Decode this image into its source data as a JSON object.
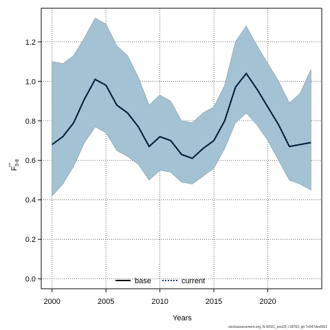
{
  "chart_data": {
    "type": "line",
    "xlabel": "Years",
    "ylabel_main": "F",
    "ylabel_sub": "5-8",
    "xlim": [
      1999,
      2025
    ],
    "ylim": [
      -0.05,
      1.37
    ],
    "x_ticks": [
      2000,
      2005,
      2010,
      2015,
      2020
    ],
    "y_ticks": [
      0.0,
      0.2,
      0.4,
      0.6,
      0.8,
      1.0,
      1.2
    ],
    "y_tick_labels": [
      "0.0",
      "0.2",
      "0.4",
      "0.6",
      "0.8",
      "1.0",
      "1.2"
    ],
    "grid": true,
    "x": [
      2000,
      2001,
      2002,
      2003,
      2004,
      2005,
      2006,
      2007,
      2008,
      2009,
      2010,
      2011,
      2012,
      2013,
      2014,
      2015,
      2016,
      2017,
      2018,
      2019,
      2020,
      2021,
      2022,
      2023,
      2024
    ],
    "band": {
      "upper": [
        1.1,
        1.09,
        1.13,
        1.22,
        1.32,
        1.29,
        1.18,
        1.13,
        1.02,
        0.88,
        0.93,
        0.9,
        0.8,
        0.79,
        0.84,
        0.87,
        0.98,
        1.2,
        1.28,
        1.18,
        1.09,
        1.0,
        0.89,
        0.94,
        1.06
      ],
      "lower": [
        0.42,
        0.48,
        0.57,
        0.69,
        0.77,
        0.74,
        0.65,
        0.62,
        0.58,
        0.5,
        0.55,
        0.54,
        0.49,
        0.48,
        0.52,
        0.56,
        0.66,
        0.79,
        0.84,
        0.78,
        0.7,
        0.6,
        0.5,
        0.48,
        0.45
      ],
      "color": "#a3c3d5"
    },
    "series": [
      {
        "name": "base",
        "style": "solid",
        "color": "#000000",
        "values": [
          0.68,
          0.72,
          0.79,
          0.91,
          1.01,
          0.98,
          0.88,
          0.84,
          0.77,
          0.67,
          0.72,
          0.7,
          0.63,
          0.61,
          0.66,
          0.7,
          0.8,
          0.97,
          1.04,
          0.96,
          0.87,
          0.78,
          0.67,
          0.68,
          0.69
        ]
      },
      {
        "name": "current",
        "style": "dotted",
        "color": "#003a70",
        "values": [
          0.68,
          0.72,
          0.79,
          0.91,
          1.01,
          0.98,
          0.88,
          0.84,
          0.77,
          0.67,
          0.72,
          0.7,
          0.63,
          0.61,
          0.66,
          0.7,
          0.8,
          0.97,
          1.04,
          0.96,
          0.87,
          0.78,
          0.67,
          0.68,
          0.69
        ]
      }
    ],
    "legend_position": "bottom-center",
    "footer": "stockassessment.org, N-WISC_test25, r18760, git 7e947decf651"
  }
}
